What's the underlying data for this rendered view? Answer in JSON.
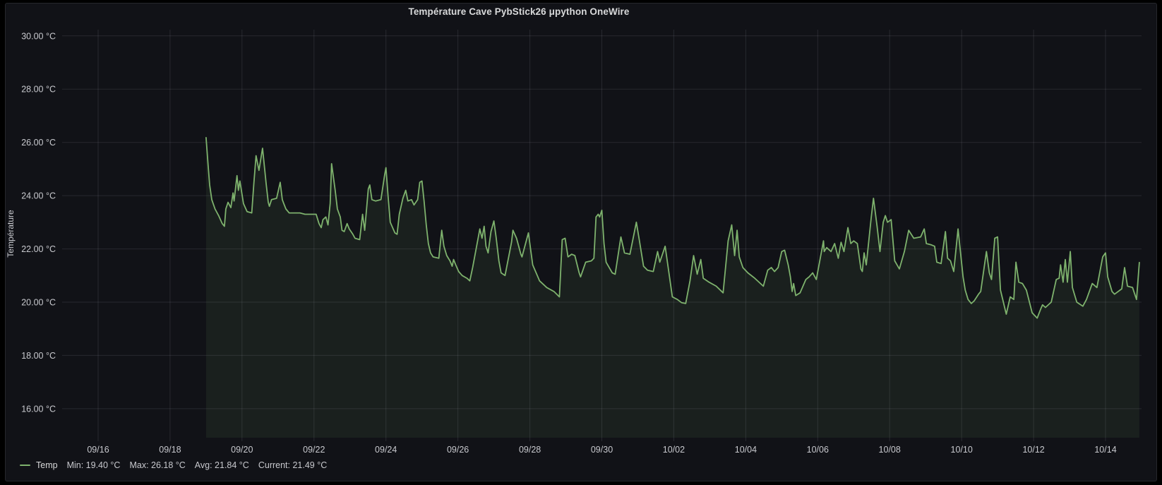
{
  "panel": {
    "title": "Température Cave PybStick26 μpython OneWire"
  },
  "legend": {
    "series_label": "Temp",
    "stats": [
      "Min: 19.40 °C",
      "Max: 26.18 °C",
      "Avg: 21.84 °C",
      "Current: 21.49 °C"
    ]
  },
  "colors": {
    "page_background": "#000000",
    "panel_background": "#111217",
    "panel_border": "#25262c",
    "grid": "rgba(204,204,220,0.12)",
    "axis_text": "#c8c9ce",
    "title_text": "#d8d9da",
    "series_line": "#7eb26d",
    "series_fill": "rgba(126,178,109,0.09)"
  },
  "chart_data": {
    "type": "area",
    "title": "Température Cave PybStick26 μpython OneWire",
    "ylabel": "Température",
    "y_unit": "°C",
    "grid": true,
    "legend_position": "bottom-left",
    "x_range_dates": [
      "09/15",
      "10/15"
    ],
    "x_range_days": [
      0,
      30
    ],
    "y_axis_range": [
      14.9,
      30.3
    ],
    "y_ticks": [
      {
        "value": 16,
        "label": "16.00 °C"
      },
      {
        "value": 18,
        "label": "18.00 °C"
      },
      {
        "value": 20,
        "label": "20.00 °C"
      },
      {
        "value": 22,
        "label": "22.00 °C"
      },
      {
        "value": 24,
        "label": "24.00 °C"
      },
      {
        "value": 26,
        "label": "26.00 °C"
      },
      {
        "value": 28,
        "label": "28.00 °C"
      },
      {
        "value": 30,
        "label": "30.00 °C"
      }
    ],
    "x_ticks": [
      {
        "day": 1,
        "label": "09/16"
      },
      {
        "day": 3,
        "label": "09/18"
      },
      {
        "day": 5,
        "label": "09/20"
      },
      {
        "day": 7,
        "label": "09/22"
      },
      {
        "day": 9,
        "label": "09/24"
      },
      {
        "day": 11,
        "label": "09/26"
      },
      {
        "day": 13,
        "label": "09/28"
      },
      {
        "day": 15,
        "label": "09/30"
      },
      {
        "day": 17,
        "label": "10/02"
      },
      {
        "day": 19,
        "label": "10/04"
      },
      {
        "day": 21,
        "label": "10/06"
      },
      {
        "day": 23,
        "label": "10/08"
      },
      {
        "day": 25,
        "label": "10/10"
      },
      {
        "day": 27,
        "label": "10/12"
      },
      {
        "day": 29,
        "label": "10/14"
      }
    ],
    "series": [
      {
        "name": "Temp",
        "min": 19.4,
        "max": 26.18,
        "avg": 21.84,
        "current": 21.49,
        "points_day_temp": [
          [
            4.0,
            26.18
          ],
          [
            4.06,
            25.1
          ],
          [
            4.1,
            24.4
          ],
          [
            4.16,
            23.85
          ],
          [
            4.25,
            23.5
          ],
          [
            4.35,
            23.25
          ],
          [
            4.45,
            22.95
          ],
          [
            4.51,
            22.85
          ],
          [
            4.55,
            23.5
          ],
          [
            4.61,
            23.75
          ],
          [
            4.69,
            23.55
          ],
          [
            4.75,
            24.1
          ],
          [
            4.78,
            23.8
          ],
          [
            4.86,
            24.75
          ],
          [
            4.9,
            24.2
          ],
          [
            4.94,
            24.55
          ],
          [
            5.04,
            23.7
          ],
          [
            5.14,
            23.4
          ],
          [
            5.27,
            23.35
          ],
          [
            5.33,
            24.5
          ],
          [
            5.39,
            25.5
          ],
          [
            5.47,
            24.95
          ],
          [
            5.57,
            25.78
          ],
          [
            5.67,
            24.45
          ],
          [
            5.73,
            23.75
          ],
          [
            5.76,
            23.6
          ],
          [
            5.82,
            23.85
          ],
          [
            5.96,
            23.9
          ],
          [
            6.06,
            24.5
          ],
          [
            6.12,
            23.85
          ],
          [
            6.16,
            23.7
          ],
          [
            6.22,
            23.5
          ],
          [
            6.31,
            23.35
          ],
          [
            6.61,
            23.35
          ],
          [
            6.75,
            23.3
          ],
          [
            7.06,
            23.3
          ],
          [
            7.14,
            22.95
          ],
          [
            7.2,
            22.8
          ],
          [
            7.25,
            23.1
          ],
          [
            7.33,
            23.2
          ],
          [
            7.39,
            22.9
          ],
          [
            7.45,
            23.7
          ],
          [
            7.49,
            25.2
          ],
          [
            7.59,
            24.2
          ],
          [
            7.65,
            23.5
          ],
          [
            7.73,
            23.2
          ],
          [
            7.78,
            22.7
          ],
          [
            7.84,
            22.65
          ],
          [
            7.92,
            22.95
          ],
          [
            7.98,
            22.75
          ],
          [
            8.08,
            22.55
          ],
          [
            8.14,
            22.4
          ],
          [
            8.27,
            22.35
          ],
          [
            8.35,
            23.3
          ],
          [
            8.41,
            22.7
          ],
          [
            8.51,
            24.25
          ],
          [
            8.55,
            24.4
          ],
          [
            8.61,
            23.85
          ],
          [
            8.71,
            23.8
          ],
          [
            8.86,
            23.85
          ],
          [
            8.96,
            24.75
          ],
          [
            9.0,
            25.05
          ],
          [
            9.06,
            23.95
          ],
          [
            9.12,
            23.0
          ],
          [
            9.25,
            22.6
          ],
          [
            9.31,
            22.55
          ],
          [
            9.37,
            23.3
          ],
          [
            9.47,
            23.9
          ],
          [
            9.55,
            24.2
          ],
          [
            9.61,
            23.8
          ],
          [
            9.71,
            23.85
          ],
          [
            9.78,
            23.65
          ],
          [
            9.88,
            23.85
          ],
          [
            9.94,
            24.5
          ],
          [
            10.0,
            24.55
          ],
          [
            10.06,
            23.8
          ],
          [
            10.12,
            22.9
          ],
          [
            10.18,
            22.2
          ],
          [
            10.24,
            21.85
          ],
          [
            10.31,
            21.7
          ],
          [
            10.47,
            21.65
          ],
          [
            10.55,
            22.7
          ],
          [
            10.61,
            22.1
          ],
          [
            10.69,
            21.75
          ],
          [
            10.78,
            21.55
          ],
          [
            10.84,
            21.35
          ],
          [
            10.88,
            21.6
          ],
          [
            10.94,
            21.4
          ],
          [
            11.02,
            21.15
          ],
          [
            11.12,
            21.0
          ],
          [
            11.25,
            20.9
          ],
          [
            11.33,
            20.8
          ],
          [
            11.41,
            21.3
          ],
          [
            11.61,
            22.75
          ],
          [
            11.67,
            22.4
          ],
          [
            11.73,
            22.85
          ],
          [
            11.78,
            22.1
          ],
          [
            11.84,
            21.85
          ],
          [
            11.92,
            22.65
          ],
          [
            12.0,
            23.05
          ],
          [
            12.06,
            22.45
          ],
          [
            12.14,
            21.55
          ],
          [
            12.2,
            21.1
          ],
          [
            12.31,
            21.0
          ],
          [
            12.49,
            22.25
          ],
          [
            12.53,
            22.7
          ],
          [
            12.63,
            22.4
          ],
          [
            12.75,
            21.8
          ],
          [
            12.78,
            21.7
          ],
          [
            12.96,
            22.6
          ],
          [
            13.08,
            21.4
          ],
          [
            13.27,
            20.8
          ],
          [
            13.47,
            20.55
          ],
          [
            13.67,
            20.4
          ],
          [
            13.82,
            20.2
          ],
          [
            13.9,
            22.35
          ],
          [
            13.98,
            22.4
          ],
          [
            14.06,
            21.7
          ],
          [
            14.16,
            21.8
          ],
          [
            14.25,
            21.75
          ],
          [
            14.37,
            21.1
          ],
          [
            14.41,
            20.95
          ],
          [
            14.55,
            21.5
          ],
          [
            14.71,
            21.55
          ],
          [
            14.78,
            21.65
          ],
          [
            14.84,
            23.2
          ],
          [
            14.9,
            23.3
          ],
          [
            14.94,
            23.2
          ],
          [
            15.0,
            23.45
          ],
          [
            15.06,
            22.2
          ],
          [
            15.12,
            21.5
          ],
          [
            15.29,
            21.1
          ],
          [
            15.37,
            21.05
          ],
          [
            15.53,
            22.45
          ],
          [
            15.63,
            21.85
          ],
          [
            15.78,
            21.8
          ],
          [
            15.96,
            23.0
          ],
          [
            16.04,
            22.35
          ],
          [
            16.16,
            21.35
          ],
          [
            16.27,
            21.2
          ],
          [
            16.43,
            21.15
          ],
          [
            16.55,
            21.9
          ],
          [
            16.61,
            21.5
          ],
          [
            16.76,
            22.1
          ],
          [
            16.96,
            20.2
          ],
          [
            17.1,
            20.1
          ],
          [
            17.22,
            19.98
          ],
          [
            17.33,
            19.95
          ],
          [
            17.45,
            20.8
          ],
          [
            17.55,
            21.75
          ],
          [
            17.65,
            21.05
          ],
          [
            17.75,
            21.6
          ],
          [
            17.82,
            20.9
          ],
          [
            17.98,
            20.75
          ],
          [
            18.18,
            20.6
          ],
          [
            18.37,
            20.35
          ],
          [
            18.51,
            22.3
          ],
          [
            18.61,
            22.9
          ],
          [
            18.69,
            21.75
          ],
          [
            18.76,
            22.7
          ],
          [
            18.82,
            21.7
          ],
          [
            18.92,
            21.3
          ],
          [
            19.06,
            21.1
          ],
          [
            19.25,
            20.9
          ],
          [
            19.49,
            20.6
          ],
          [
            19.61,
            21.2
          ],
          [
            19.71,
            21.3
          ],
          [
            19.8,
            21.15
          ],
          [
            19.9,
            21.3
          ],
          [
            20.0,
            21.9
          ],
          [
            20.08,
            21.95
          ],
          [
            20.18,
            21.4
          ],
          [
            20.24,
            20.95
          ],
          [
            20.29,
            20.4
          ],
          [
            20.33,
            20.7
          ],
          [
            20.39,
            20.25
          ],
          [
            20.51,
            20.35
          ],
          [
            20.67,
            20.85
          ],
          [
            20.76,
            20.95
          ],
          [
            20.86,
            21.1
          ],
          [
            20.96,
            20.85
          ],
          [
            21.16,
            22.3
          ],
          [
            21.18,
            21.9
          ],
          [
            21.25,
            22.05
          ],
          [
            21.37,
            21.9
          ],
          [
            21.47,
            22.2
          ],
          [
            21.57,
            21.65
          ],
          [
            21.65,
            22.25
          ],
          [
            21.73,
            21.9
          ],
          [
            21.84,
            22.8
          ],
          [
            21.92,
            22.2
          ],
          [
            22.0,
            22.3
          ],
          [
            22.1,
            22.2
          ],
          [
            22.2,
            21.25
          ],
          [
            22.24,
            21.15
          ],
          [
            22.29,
            21.85
          ],
          [
            22.35,
            21.4
          ],
          [
            22.49,
            23.2
          ],
          [
            22.55,
            23.9
          ],
          [
            22.65,
            22.85
          ],
          [
            22.73,
            21.9
          ],
          [
            22.82,
            23.0
          ],
          [
            22.88,
            23.25
          ],
          [
            22.94,
            23.0
          ],
          [
            23.04,
            23.1
          ],
          [
            23.14,
            21.55
          ],
          [
            23.27,
            21.25
          ],
          [
            23.41,
            21.9
          ],
          [
            23.53,
            22.7
          ],
          [
            23.67,
            22.4
          ],
          [
            23.86,
            22.45
          ],
          [
            23.96,
            22.75
          ],
          [
            24.02,
            22.2
          ],
          [
            24.16,
            22.15
          ],
          [
            24.25,
            22.1
          ],
          [
            24.31,
            21.5
          ],
          [
            24.43,
            21.45
          ],
          [
            24.55,
            22.65
          ],
          [
            24.61,
            21.65
          ],
          [
            24.69,
            21.55
          ],
          [
            24.78,
            21.15
          ],
          [
            24.9,
            22.75
          ],
          [
            25.04,
            20.95
          ],
          [
            25.1,
            20.45
          ],
          [
            25.18,
            20.1
          ],
          [
            25.27,
            19.95
          ],
          [
            25.35,
            20.05
          ],
          [
            25.47,
            20.3
          ],
          [
            25.53,
            20.4
          ],
          [
            25.69,
            21.9
          ],
          [
            25.77,
            21.1
          ],
          [
            25.83,
            20.85
          ],
          [
            25.92,
            22.4
          ],
          [
            26.0,
            22.45
          ],
          [
            26.08,
            20.45
          ],
          [
            26.24,
            19.55
          ],
          [
            26.35,
            20.2
          ],
          [
            26.45,
            20.1
          ],
          [
            26.51,
            21.5
          ],
          [
            26.59,
            20.75
          ],
          [
            26.69,
            20.7
          ],
          [
            26.8,
            20.45
          ],
          [
            26.96,
            19.6
          ],
          [
            27.1,
            19.4
          ],
          [
            27.2,
            19.75
          ],
          [
            27.25,
            19.9
          ],
          [
            27.33,
            19.8
          ],
          [
            27.49,
            20.0
          ],
          [
            27.63,
            20.85
          ],
          [
            27.71,
            20.9
          ],
          [
            27.75,
            21.4
          ],
          [
            27.82,
            20.75
          ],
          [
            27.88,
            21.6
          ],
          [
            27.94,
            20.75
          ],
          [
            28.02,
            21.9
          ],
          [
            28.08,
            20.55
          ],
          [
            28.2,
            20.0
          ],
          [
            28.37,
            19.85
          ],
          [
            28.47,
            20.1
          ],
          [
            28.63,
            20.7
          ],
          [
            28.76,
            20.55
          ],
          [
            28.92,
            21.7
          ],
          [
            29.0,
            21.85
          ],
          [
            29.06,
            20.95
          ],
          [
            29.18,
            20.4
          ],
          [
            29.25,
            20.3
          ],
          [
            29.45,
            20.5
          ],
          [
            29.53,
            21.3
          ],
          [
            29.61,
            20.6
          ],
          [
            29.75,
            20.55
          ],
          [
            29.86,
            20.1
          ],
          [
            29.94,
            21.49
          ]
        ]
      }
    ]
  }
}
